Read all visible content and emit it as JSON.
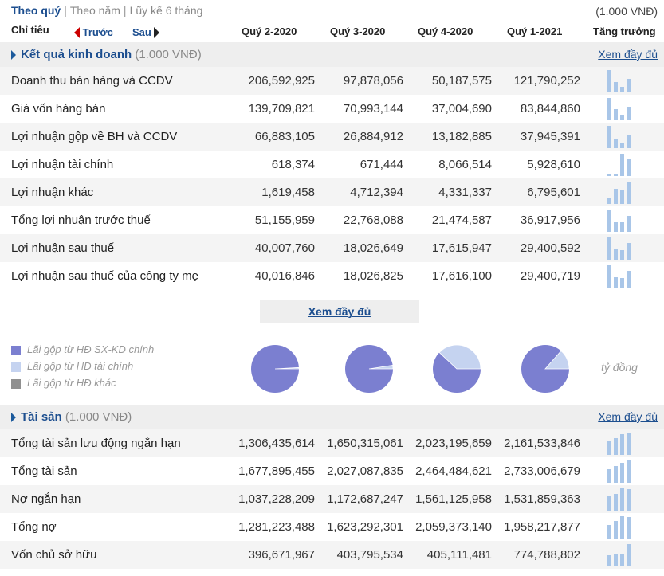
{
  "tabs": {
    "quarter": "Theo quý",
    "year": "Theo năm",
    "ytd": "Lũy kế 6 tháng",
    "sep": "|"
  },
  "unit_top": "(1.000 VNĐ)",
  "header": {
    "indicator": "Chỉ tiêu",
    "prev": "Trước",
    "next": "Sau",
    "periods": [
      "Quý 2-2020",
      "Quý 3-2020",
      "Quý 4-2020",
      "Quý 1-2021"
    ],
    "growth": "Tăng trưởng"
  },
  "colors": {
    "accent": "#1c4e8f",
    "bar": "#a9c6e8",
    "pie_main": "#7b7fd0",
    "pie_light": "#c5d3f0",
    "pie_gray": "#909090"
  },
  "business": {
    "title": "Kết quả kinh doanh",
    "unit": "(1.000 VNĐ)",
    "more": "Xem đầy đủ",
    "rows": [
      {
        "label": "Doanh thu bán hàng và CCDV",
        "values": [
          "206,592,925",
          "97,878,056",
          "50,187,575",
          "121,790,252"
        ]
      },
      {
        "label": "Giá vốn hàng bán",
        "values": [
          "139,709,821",
          "70,993,144",
          "37,004,690",
          "83,844,860"
        ]
      },
      {
        "label": "Lợi nhuận gộp về BH và CCDV",
        "values": [
          "66,883,105",
          "26,884,912",
          "13,182,885",
          "37,945,391"
        ]
      },
      {
        "label": "Lợi nhuận tài chính",
        "values": [
          "618,374",
          "671,444",
          "8,066,514",
          "5,928,610"
        ]
      },
      {
        "label": "Lợi nhuận khác",
        "values": [
          "1,619,458",
          "4,712,394",
          "4,331,337",
          "6,795,601"
        ]
      },
      {
        "label": "Tổng lợi nhuận trước thuế",
        "values": [
          "51,155,959",
          "22,768,088",
          "21,474,587",
          "36,917,956"
        ]
      },
      {
        "label": "Lợi nhuận sau thuế",
        "values": [
          "40,007,760",
          "18,026,649",
          "17,615,947",
          "29,400,592"
        ]
      },
      {
        "label": "Lợi nhuận sau thuế của công ty mẹ",
        "values": [
          "40,016,846",
          "18,026,825",
          "17,616,100",
          "29,400,719"
        ]
      }
    ]
  },
  "middle": {
    "more": "Xem đầy đủ",
    "legend": [
      "Lãi gộp từ HĐ SX-KD chính",
      "Lãi gộp từ HĐ tài chính",
      "Lãi gộp từ HĐ khác"
    ],
    "unit": "tỷ đồng",
    "pie_light_fraction": [
      0.009,
      0.024,
      0.38,
      0.135
    ]
  },
  "assets": {
    "title": "Tài sản",
    "unit": "(1.000 VNĐ)",
    "more": "Xem đầy đủ",
    "rows": [
      {
        "label": "Tổng tài sản lưu động ngắn hạn",
        "values": [
          "1,306,435,614",
          "1,650,315,061",
          "2,023,195,659",
          "2,161,533,846"
        ]
      },
      {
        "label": "Tổng tài sản",
        "values": [
          "1,677,895,455",
          "2,027,087,835",
          "2,464,484,621",
          "2,733,006,679"
        ]
      },
      {
        "label": "Nợ ngắn hạn",
        "values": [
          "1,037,228,209",
          "1,172,687,247",
          "1,561,125,958",
          "1,531,859,363"
        ]
      },
      {
        "label": "Tổng nợ",
        "values": [
          "1,281,223,488",
          "1,623,292,301",
          "2,059,373,140",
          "1,958,217,877"
        ]
      },
      {
        "label": "Vốn chủ sở hữu",
        "values": [
          "396,671,967",
          "403,795,534",
          "405,111,481",
          "774,788,802"
        ]
      }
    ]
  }
}
